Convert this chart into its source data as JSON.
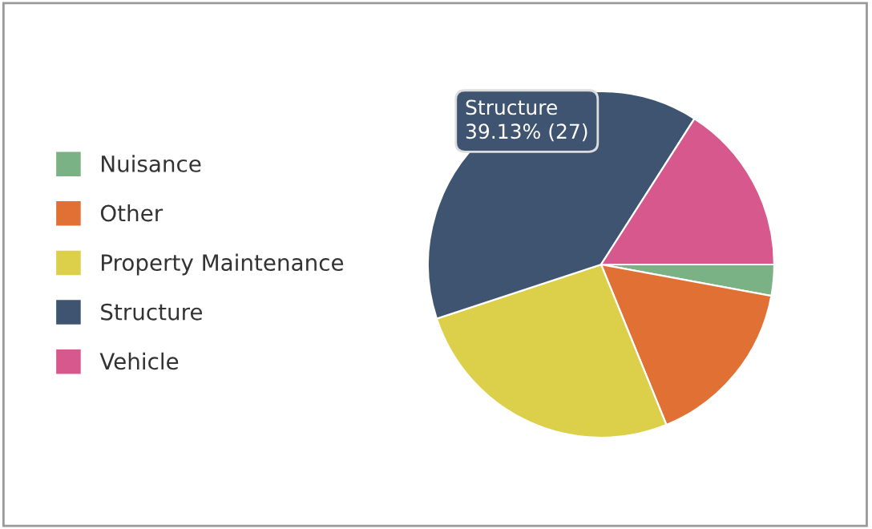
{
  "chart_data": {
    "type": "pie",
    "categories": [
      "Nuisance",
      "Other",
      "Property Maintenance",
      "Structure",
      "Vehicle"
    ],
    "values": [
      2.9,
      15.94,
      26.09,
      39.13,
      15.94
    ],
    "colors": [
      "#7bb285",
      "#e07034",
      "#dccf4a",
      "#3f5470",
      "#d6588c"
    ],
    "legend": "left",
    "annotations": [
      "Structure",
      "39.13% (27)"
    ]
  }
}
